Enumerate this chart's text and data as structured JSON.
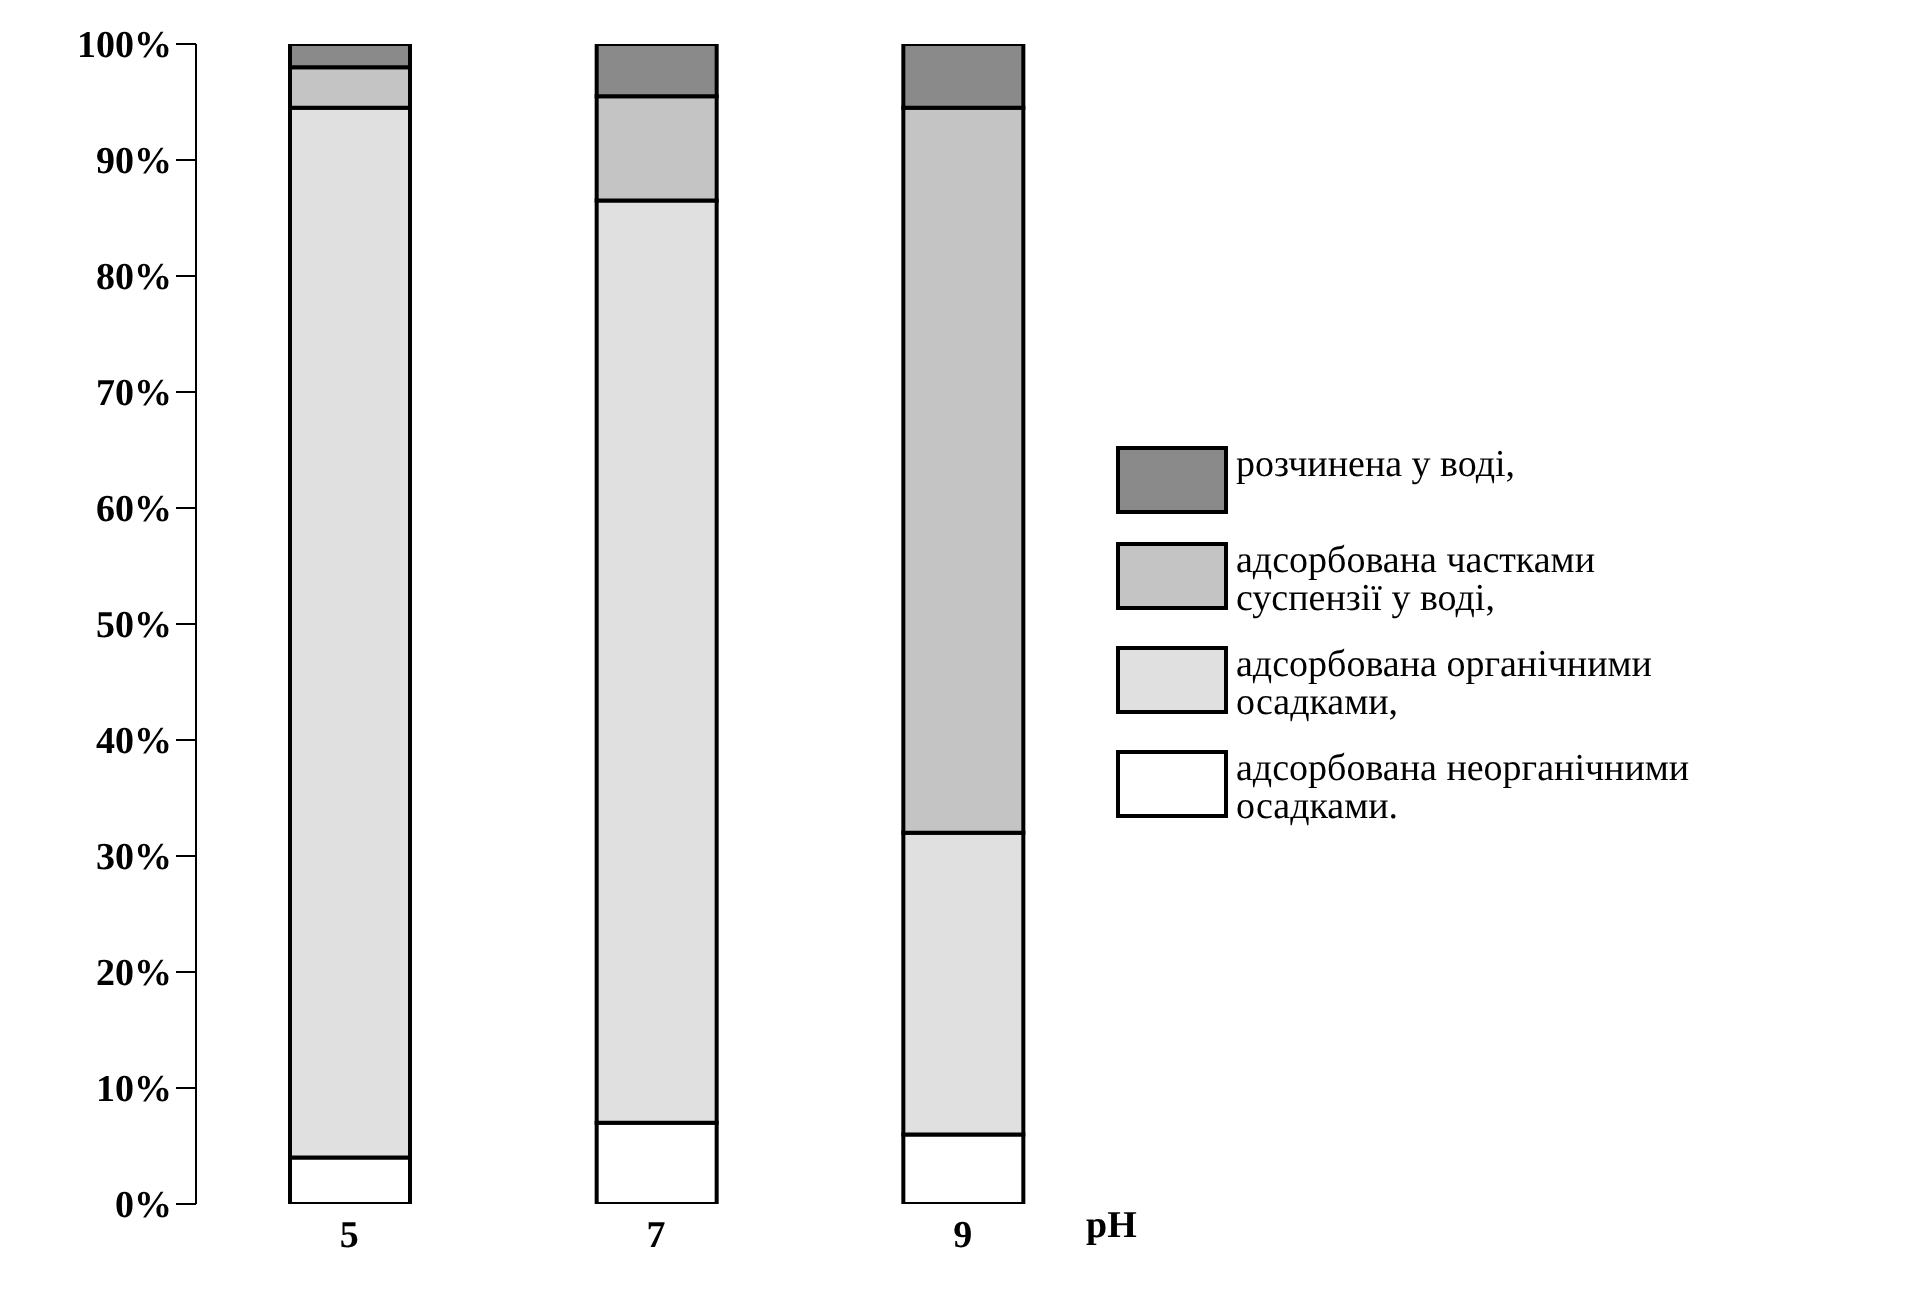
{
  "chart_data": {
    "type": "bar",
    "stacked": true,
    "xlabel": "pH",
    "categories": [
      "5",
      "7",
      "9"
    ],
    "ylim": [
      0,
      100
    ],
    "yticks": [
      {
        "value": 0,
        "label": "0%"
      },
      {
        "value": 10,
        "label": "10%"
      },
      {
        "value": 20,
        "label": "20%"
      },
      {
        "value": 30,
        "label": "30%"
      },
      {
        "value": 40,
        "label": "40%"
      },
      {
        "value": 50,
        "label": "50%"
      },
      {
        "value": 60,
        "label": "60%"
      },
      {
        "value": 70,
        "label": "70%"
      },
      {
        "value": 80,
        "label": "80%"
      },
      {
        "value": 90,
        "label": "90%"
      },
      {
        "value": 100,
        "label": "100%"
      }
    ],
    "legend": "right",
    "grid": false,
    "series": [
      {
        "name": "адсорбована неорганічними осадками.",
        "color": "#ffffff",
        "values": [
          4,
          7,
          6
        ]
      },
      {
        "name": "адсорбована органічними осадками,",
        "color": "#e0e0e0",
        "values": [
          90.5,
          79.5,
          26
        ]
      },
      {
        "name": "адсорбована частками суспензії у воді,",
        "color": "#c4c4c4",
        "values": [
          3.5,
          9,
          62.5
        ]
      },
      {
        "name": "розчинена у воді,",
        "color": "#8a8a8a",
        "values": [
          2,
          4.5,
          5.5
        ]
      }
    ]
  }
}
